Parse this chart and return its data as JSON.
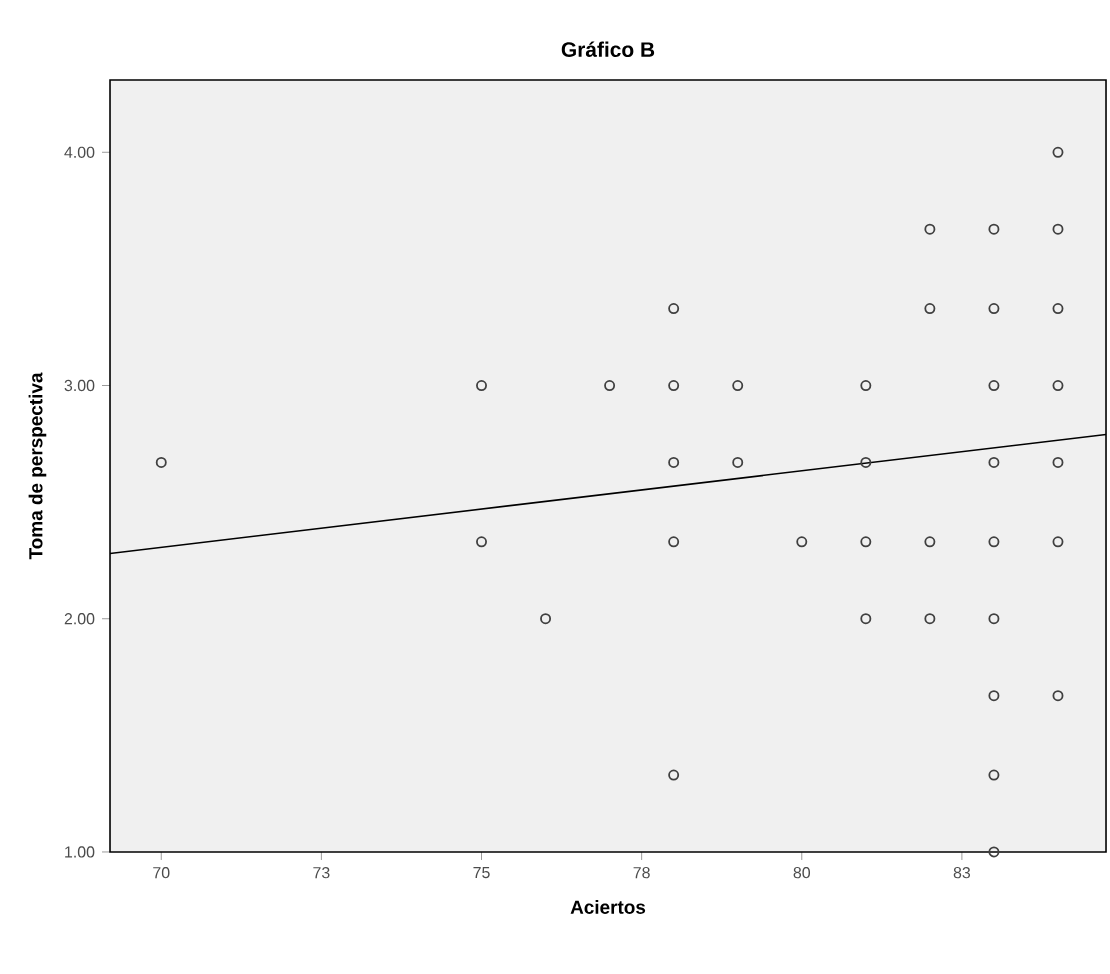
{
  "chart_data": {
    "type": "scatter",
    "title": "Gráfico B",
    "xlabel": "Aciertos",
    "ylabel": "Toma de perspectiva",
    "xlim": [
      69.2,
      84.75
    ],
    "ylim": [
      1,
      4.31
    ],
    "xticks": [
      70,
      {
        "value": 72.5,
        "label": "73"
      },
      75,
      {
        "value": 77.5,
        "label": "78"
      },
      80,
      {
        "value": 82.5,
        "label": "83"
      }
    ],
    "yticks": [
      {
        "value": 1,
        "label": "1.00"
      },
      {
        "value": 2,
        "label": "2.00"
      },
      {
        "value": 3,
        "label": "3.00"
      },
      {
        "value": 4,
        "label": "4.00"
      }
    ],
    "grid": false,
    "series": [
      {
        "marker": "circle",
        "color": "#404040",
        "x": [
          70,
          75,
          75,
          76,
          77,
          78,
          78,
          78,
          78,
          78,
          79,
          79,
          80,
          81,
          81,
          81,
          81,
          82,
          82,
          82,
          82,
          83,
          83,
          83,
          83,
          83,
          83,
          83,
          83,
          83,
          84,
          84,
          84,
          84,
          84,
          84,
          84
        ],
        "values": [
          2.67,
          3.0,
          2.33,
          2.0,
          3.0,
          3.33,
          3.0,
          2.67,
          2.33,
          1.33,
          3.0,
          2.67,
          2.33,
          3.0,
          2.67,
          2.33,
          2.0,
          3.67,
          3.33,
          2.33,
          2.0,
          3.67,
          3.33,
          3.0,
          2.67,
          2.33,
          2.0,
          1.67,
          1.33,
          1.0,
          4.0,
          3.67,
          3.33,
          3.0,
          2.67,
          2.33,
          1.67
        ]
      },
      {
        "type": "line",
        "color": "#000000",
        "x": [
          69.2,
          84.75
        ],
        "values": [
          2.28,
          2.79
        ]
      }
    ]
  }
}
